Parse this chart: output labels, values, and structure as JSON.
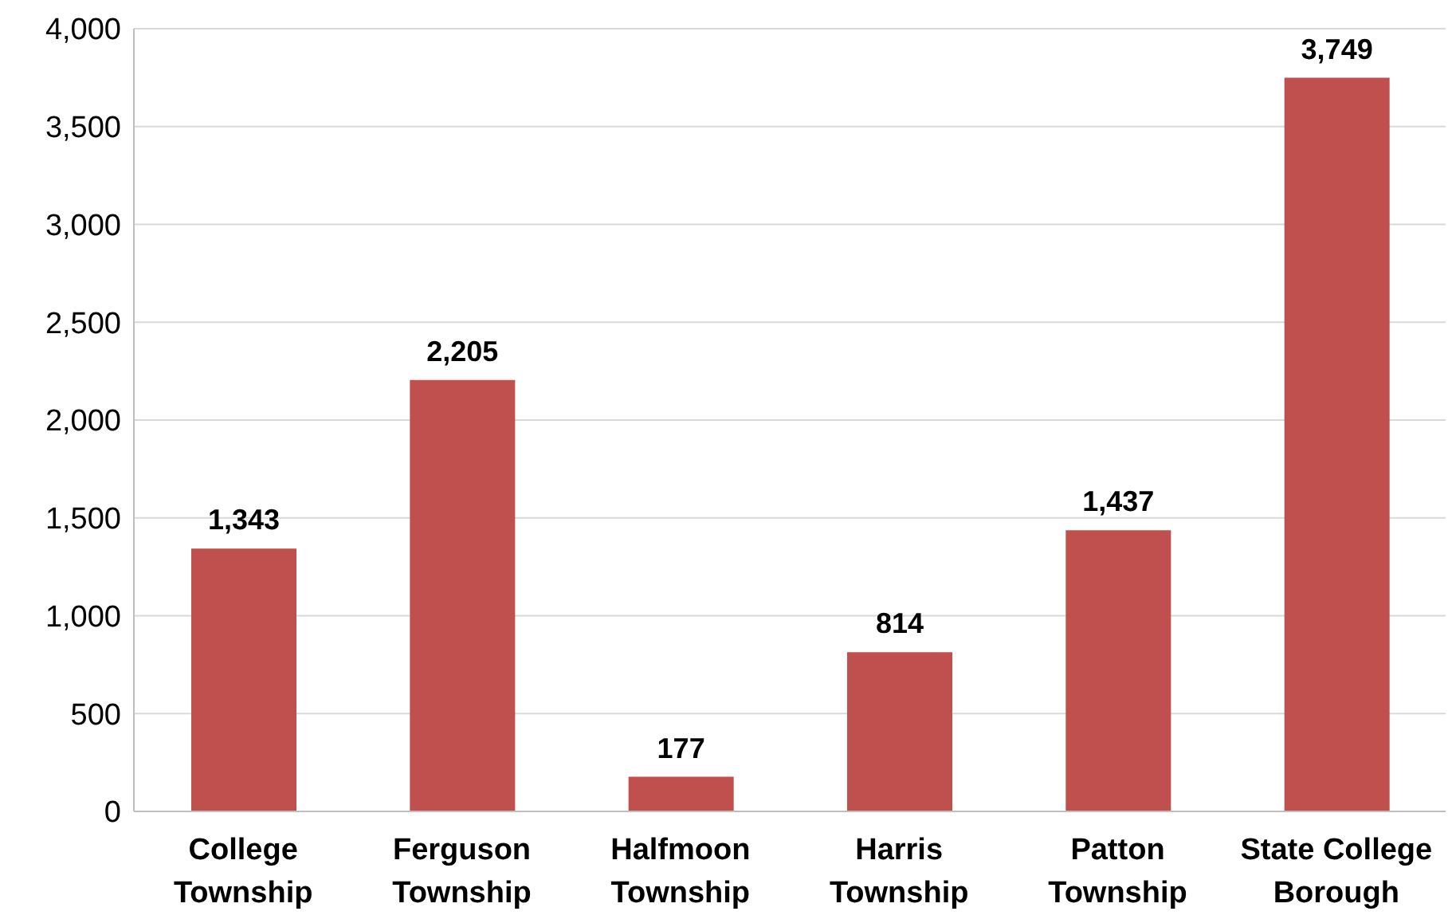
{
  "chart_data": {
    "type": "bar",
    "categories": [
      "College Township",
      "Ferguson Township",
      "Halfmoon Township",
      "Harris Township",
      "Patton Township",
      "State College Borough"
    ],
    "values": [
      1343,
      2205,
      177,
      814,
      1437,
      3749
    ],
    "value_labels": [
      "1,343",
      "2,205",
      "177",
      "814",
      "1,437",
      "3,749"
    ],
    "color": "#c0504d",
    "ylim": [
      0,
      4000
    ],
    "yticks": [
      0,
      500,
      {
        "value": 1000,
        "label": "1,000"
      },
      {
        "value": 1500,
        "label": "1,500"
      },
      {
        "value": 2000,
        "label": "2,000"
      },
      {
        "value": 2500,
        "label": "2,500"
      },
      {
        "value": 3000,
        "label": "3,000"
      },
      {
        "value": 3500,
        "label": "3,500"
      },
      {
        "value": 4000,
        "label": "4,000"
      }
    ],
    "grid": "y"
  }
}
